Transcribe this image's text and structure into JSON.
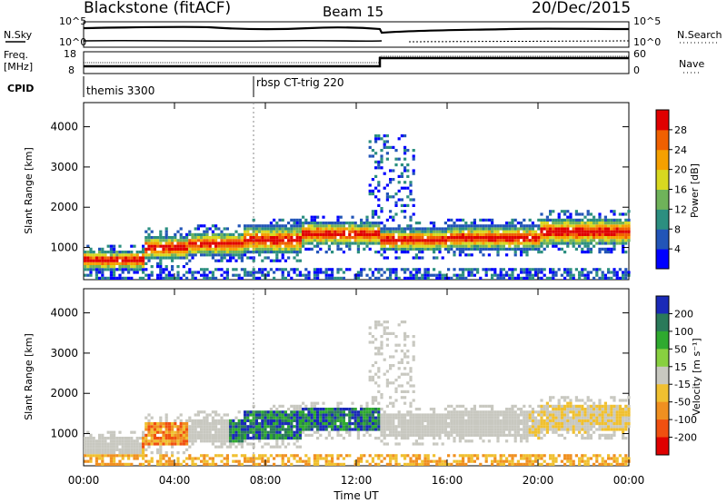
{
  "header": {
    "station": "Blackstone (fitACF)",
    "beam": "Beam 15",
    "date": "20/Dec/2015"
  },
  "top_panels": {
    "nsky_label": "N.Sky",
    "nsearch_label": "N.Search",
    "nsky_ticks": [
      "10^5",
      "10^0"
    ],
    "nsearch_ticks": [
      "10^5",
      "10^0"
    ],
    "freq_label_1": "Freq.",
    "freq_label_2": "[MHz]",
    "freq_ticks": [
      "18",
      "8"
    ],
    "nave_label": "Nave",
    "nave_ticks": [
      "60",
      "0"
    ],
    "cpid_label": "CPID",
    "cpid_programs": [
      "themis 3300",
      "rbsp CT-trig 220"
    ]
  },
  "chart_data": [
    {
      "type": "heatmap",
      "name": "power",
      "ylabel": "Slant Range [km]",
      "yticks": [
        "1000",
        "2000",
        "3000",
        "4000"
      ],
      "ylim": [
        200,
        4600
      ],
      "xlim": [
        0,
        24
      ],
      "colorbar_label": "Power [dB]",
      "colorbar_ticks": [
        "4",
        "8",
        "12",
        "16",
        "20",
        "24",
        "28"
      ],
      "colorbar_colors": [
        "#0000ff",
        "#2255b8",
        "#2c8f80",
        "#6fb35a",
        "#d8d820",
        "#f5a000",
        "#f06000",
        "#e00000"
      ]
    },
    {
      "type": "heatmap",
      "name": "velocity",
      "ylabel": "Slant Range [km]",
      "yticks": [
        "1000",
        "2000",
        "3000",
        "4000"
      ],
      "ylim": [
        200,
        4600
      ],
      "xlim": [
        0,
        24
      ],
      "xticks": [
        "00:00",
        "04:00",
        "08:00",
        "12:00",
        "16:00",
        "20:00",
        "00:00"
      ],
      "xlabel": "Time UT",
      "colorbar_label": "Velocity [m s⁻¹]",
      "colorbar_ticks": [
        "200",
        "100",
        "50",
        "15",
        "-15",
        "-50",
        "-100",
        "-200"
      ],
      "colorbar_colors": [
        "#1a2ab8",
        "#2a7a5a",
        "#2faa2f",
        "#88d040",
        "#c8c8c0",
        "#f0c030",
        "#f09020",
        "#f05010",
        "#e00000"
      ]
    }
  ]
}
